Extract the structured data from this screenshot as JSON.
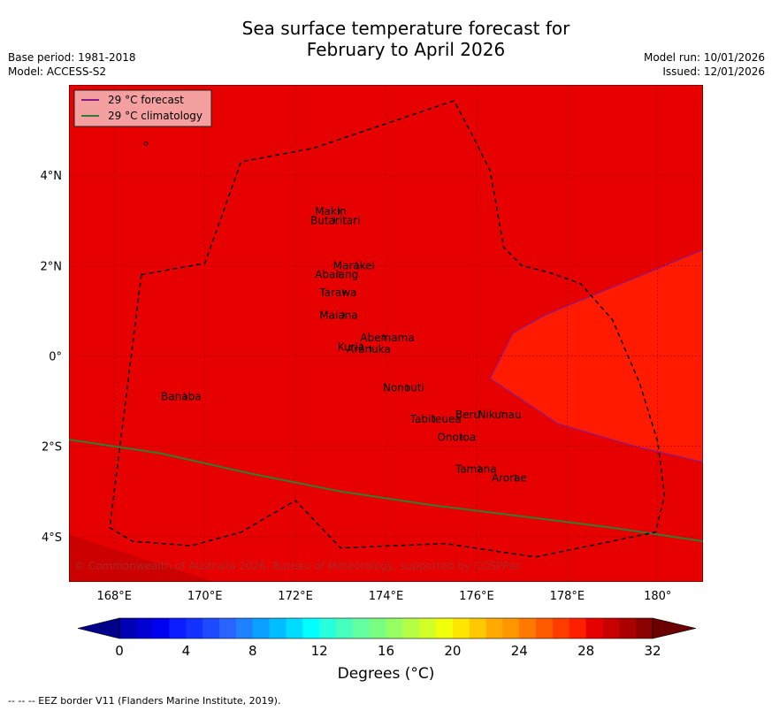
{
  "title": {
    "line1": "Sea surface temperature forecast for",
    "line2": "February to April 2026"
  },
  "meta": {
    "base_period": "Base period: 1981-2018",
    "model": "Model: ACCESS-S2",
    "model_run": "Model run: 10/01/2026",
    "issued": "Issued: 12/01/2026"
  },
  "legend": {
    "forecast_label": "29 °C  forecast",
    "forecast_color": "#8b1a8b",
    "climatology_label": "29 °C  climatology",
    "climatology_color": "#2e7d32"
  },
  "map": {
    "lon_range": [
      167,
      181
    ],
    "lat_range": [
      -5,
      6
    ],
    "x_ticks": [
      {
        "lon": 168,
        "label": "168°E"
      },
      {
        "lon": 170,
        "label": "170°E"
      },
      {
        "lon": 172,
        "label": "172°E"
      },
      {
        "lon": 174,
        "label": "174°E"
      },
      {
        "lon": 176,
        "label": "176°E"
      },
      {
        "lon": 178,
        "label": "178°E"
      },
      {
        "lon": 180,
        "label": "180°"
      }
    ],
    "y_ticks": [
      {
        "lat": 4,
        "label": "4°N"
      },
      {
        "lat": 2,
        "label": "2°N"
      },
      {
        "lat": 0,
        "label": "0°"
      },
      {
        "lat": -2,
        "label": "2°S"
      },
      {
        "lat": -4,
        "label": "4°S"
      }
    ],
    "fill_colors": {
      "main": "#e60000",
      "warm_patch": "#ff1a00",
      "cool_corner": "#cc0000"
    },
    "islands": [
      {
        "name": "Makin",
        "lon": 172.9,
        "lat": 3.2
      },
      {
        "name": "Butaritari",
        "lon": 172.8,
        "lat": 3.0
      },
      {
        "name": "Marakei",
        "lon": 173.3,
        "lat": 2.0
      },
      {
        "name": "Abaiang",
        "lon": 172.9,
        "lat": 1.8
      },
      {
        "name": "Tarawa",
        "lon": 173.0,
        "lat": 1.4
      },
      {
        "name": "Maiana",
        "lon": 173.0,
        "lat": 0.9
      },
      {
        "name": "Abemama",
        "lon": 173.9,
        "lat": 0.4
      },
      {
        "name": "Kuria",
        "lon": 173.4,
        "lat": 0.2
      },
      {
        "name": "Aranuka",
        "lon": 173.6,
        "lat": 0.15
      },
      {
        "name": "Nonouti",
        "lon": 174.4,
        "lat": -0.7
      },
      {
        "name": "Banaba",
        "lon": 169.5,
        "lat": -0.9
      },
      {
        "name": "Beru",
        "lon": 176.0,
        "lat": -1.3
      },
      {
        "name": "Nikunau",
        "lon": 176.5,
        "lat": -1.3
      },
      {
        "name": "Tabiteuea",
        "lon": 175.0,
        "lat": -1.4
      },
      {
        "name": "Onotoa",
        "lon": 175.6,
        "lat": -1.8
      },
      {
        "name": "Tamana",
        "lon": 176.0,
        "lat": -2.5
      },
      {
        "name": "Arorae",
        "lon": 176.8,
        "lat": -2.7
      }
    ],
    "copyright": "© Commonwealth of Australia 2026, Bureau of Meteorology, supported by COSPPac"
  },
  "colorbar": {
    "ticks": [
      "0",
      "4",
      "8",
      "12",
      "16",
      "20",
      "24",
      "28",
      "32"
    ],
    "min": 0,
    "max": 32,
    "step": 1,
    "colors": [
      "#0000b4",
      "#0000d2",
      "#0000f0",
      "#0a1eff",
      "#1432ff",
      "#1e4bff",
      "#2864ff",
      "#1e82ff",
      "#0aa0ff",
      "#00beff",
      "#00dcff",
      "#00ffff",
      "#28ffdc",
      "#46ffbe",
      "#64ffa0",
      "#78ff82",
      "#96ff64",
      "#b4ff46",
      "#d2ff28",
      "#f0ff0a",
      "#ffe600",
      "#ffc800",
      "#ffaa00",
      "#ff9600",
      "#ff7800",
      "#ff5a00",
      "#ff3c00",
      "#ff1e00",
      "#e60000",
      "#c80000",
      "#aa0000",
      "#8b0000"
    ],
    "under_color": "#00008b",
    "over_color": "#6b0000",
    "units_label": "Degrees (°C)"
  },
  "footer": "--  --  -- EEZ border V11 (Flanders Marine Institute, 2019)."
}
